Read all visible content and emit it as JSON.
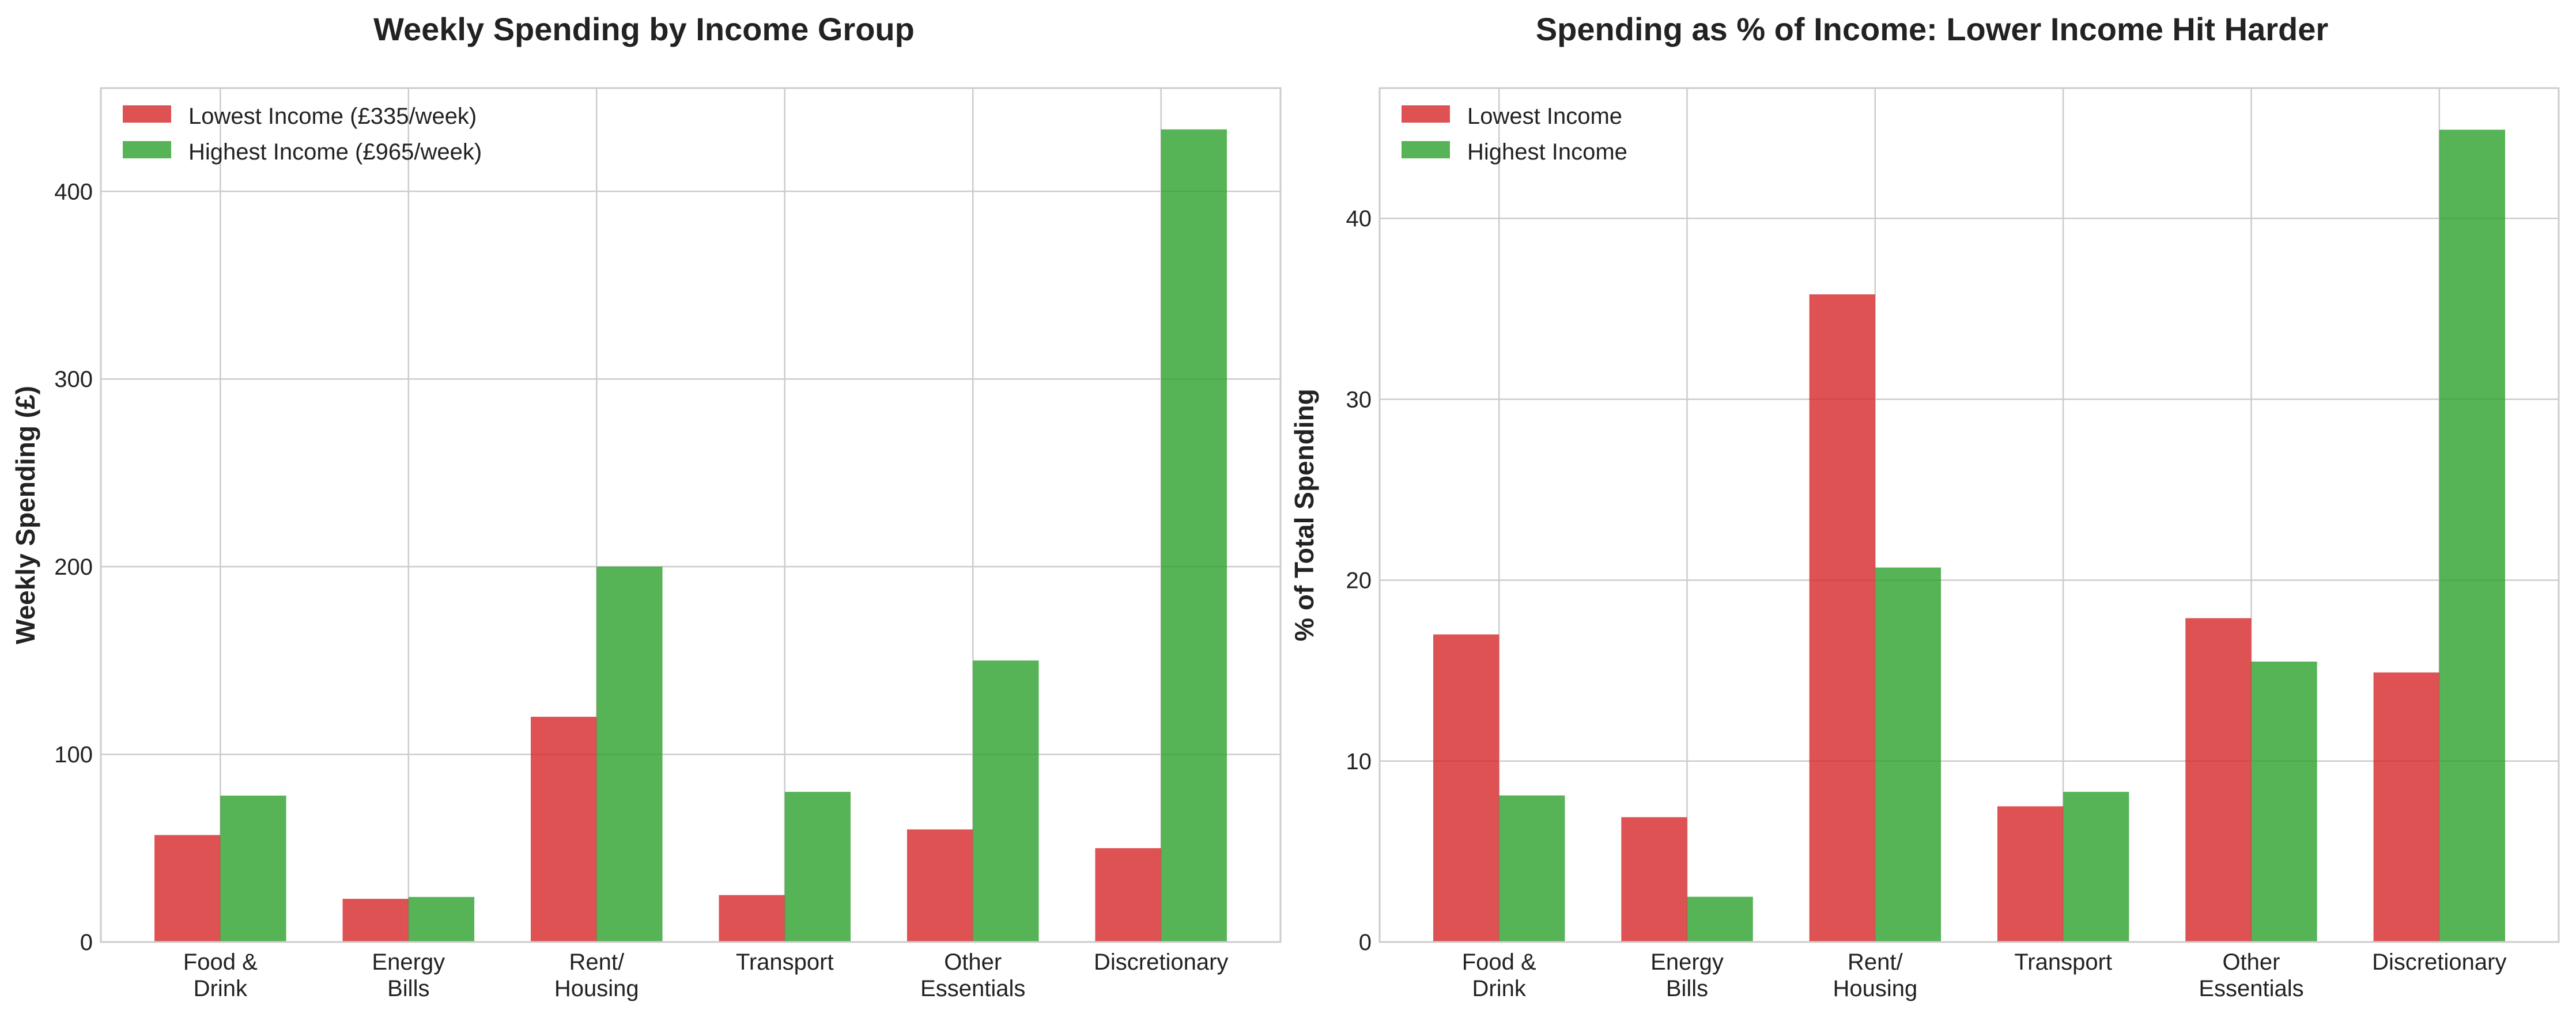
{
  "chart_data": [
    {
      "type": "bar",
      "title": "Weekly Spending by Income Group",
      "xlabel": "",
      "ylabel": "Weekly Spending (£)",
      "categories": [
        "Food &\nDrink",
        "Energy\nBills",
        "Rent/\nHousing",
        "Transport",
        "Other\nEssentials",
        "Discretionary"
      ],
      "series": [
        {
          "name": "Lowest Income (£335/week)",
          "color": "#d62728",
          "values": [
            57,
            23,
            120,
            25,
            60,
            50
          ]
        },
        {
          "name": "Highest Income (£965/week)",
          "color": "#2ca02c",
          "values": [
            78,
            24,
            200,
            80,
            150,
            433
          ]
        }
      ],
      "ylim": [
        0,
        455
      ],
      "yticks": [
        0,
        100,
        200,
        300,
        400
      ],
      "grid": true,
      "legend": "top-left"
    },
    {
      "type": "bar",
      "title": "Spending as % of Income: Lower Income Hit Harder",
      "xlabel": "",
      "ylabel": "% of Total Spending",
      "categories": [
        "Food &\nDrink",
        "Energy\nBills",
        "Rent/\nHousing",
        "Transport",
        "Other\nEssentials",
        "Discretionary"
      ],
      "series": [
        {
          "name": "Lowest Income",
          "color": "#d62728",
          "values": [
            17.0,
            6.9,
            35.8,
            7.5,
            17.9,
            14.9
          ]
        },
        {
          "name": "Highest Income",
          "color": "#2ca02c",
          "values": [
            8.1,
            2.5,
            20.7,
            8.3,
            15.5,
            44.9
          ]
        }
      ],
      "ylim": [
        0,
        47.2
      ],
      "yticks": [
        0,
        10,
        20,
        30,
        40
      ],
      "grid": true,
      "legend": "top-left"
    }
  ]
}
